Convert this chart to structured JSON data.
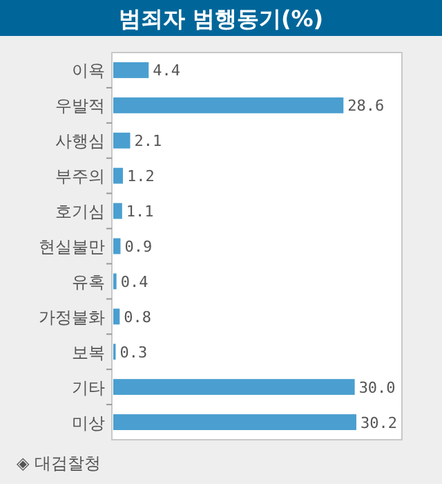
{
  "chart_data": {
    "type": "bar",
    "orientation": "horizontal",
    "title": "범죄자 범행동기(%)",
    "categories": [
      "이욕",
      "우발적",
      "사행심",
      "부주의",
      "호기심",
      "현실불만",
      "유혹",
      "가정불화",
      "보복",
      "기타",
      "미상"
    ],
    "values": [
      4.4,
      28.6,
      2.1,
      1.2,
      1.1,
      0.9,
      0.4,
      0.8,
      0.3,
      30.0,
      30.2
    ],
    "value_labels": [
      "4.4",
      "28.6",
      "2.1",
      "1.2",
      "1.1",
      "0.9",
      "0.4",
      "0.8",
      "0.3",
      "30.0",
      "30.2"
    ],
    "color": "#4a9fd0",
    "annotations": [
      "◈ 대검찰청"
    ]
  }
}
